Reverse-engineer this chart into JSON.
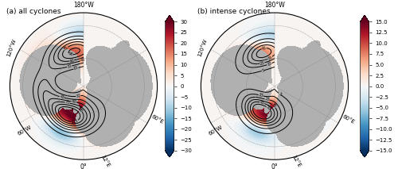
{
  "title_a": "(a) all cyclones",
  "title_b": "(b) intense cyclones",
  "top_label": "180°W",
  "bottom_label": "0°",
  "label_120W": "120°W",
  "label_60W": "60°W",
  "label_12E": "12°E",
  "label_60E": "60°E",
  "colorbar_a_ticks": [
    30,
    25,
    20,
    15,
    10,
    5,
    0,
    -5,
    -10,
    -15,
    -20,
    -25,
    -30
  ],
  "colorbar_b_ticks": [
    15,
    12.5,
    10,
    7.5,
    5,
    2.5,
    0,
    -2.5,
    -5,
    -7.5,
    -10,
    -12.5,
    -15
  ],
  "colormap": "RdBu_r",
  "contour_color": "black",
  "land_color": "#b0b0b0",
  "background_color": "white",
  "fig_width": 5.0,
  "fig_height": 2.13,
  "dpi": 100,
  "vmin_a": -30,
  "vmax_a": 30,
  "vmin_b": -15,
  "vmax_b": 15,
  "contour_levels_a": [
    15,
    30,
    45,
    60,
    75,
    90,
    105
  ],
  "contour_levels_b": [
    5,
    15,
    25,
    35,
    45,
    55
  ],
  "lat_min": 20,
  "lat_max": 90
}
